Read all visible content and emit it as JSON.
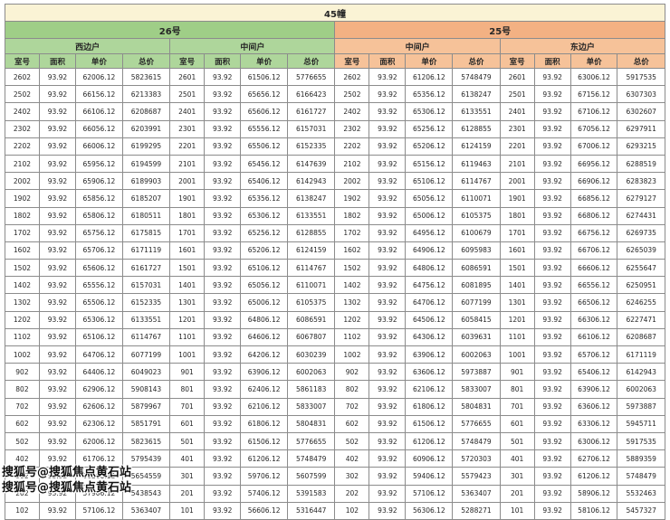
{
  "table": {
    "title": "45幢",
    "buildings": [
      {
        "name": "26号",
        "unit_types": [
          "西边户",
          "中间户"
        ]
      },
      {
        "name": "25号",
        "unit_types": [
          "中间户",
          "东边户"
        ]
      }
    ],
    "column_headers": [
      "室号",
      "面积",
      "单价",
      "总价"
    ],
    "rows": [
      [
        "2602",
        "93.92",
        "62006.12",
        "5823615",
        "2601",
        "93.92",
        "61506.12",
        "5776655",
        "2602",
        "93.92",
        "61206.12",
        "5748479",
        "2601",
        "93.92",
        "63006.12",
        "5917535"
      ],
      [
        "2502",
        "93.92",
        "66156.12",
        "6213383",
        "2501",
        "93.92",
        "65656.12",
        "6166423",
        "2502",
        "93.92",
        "65356.12",
        "6138247",
        "2501",
        "93.92",
        "67156.12",
        "6307303"
      ],
      [
        "2402",
        "93.92",
        "66106.12",
        "6208687",
        "2401",
        "93.92",
        "65606.12",
        "6161727",
        "2402",
        "93.92",
        "65306.12",
        "6133551",
        "2401",
        "93.92",
        "67106.12",
        "6302607"
      ],
      [
        "2302",
        "93.92",
        "66056.12",
        "6203991",
        "2301",
        "93.92",
        "65556.12",
        "6157031",
        "2302",
        "93.92",
        "65256.12",
        "6128855",
        "2301",
        "93.92",
        "67056.12",
        "6297911"
      ],
      [
        "2202",
        "93.92",
        "66006.12",
        "6199295",
        "2201",
        "93.92",
        "65506.12",
        "6152335",
        "2202",
        "93.92",
        "65206.12",
        "6124159",
        "2201",
        "93.92",
        "67006.12",
        "6293215"
      ],
      [
        "2102",
        "93.92",
        "65956.12",
        "6194599",
        "2101",
        "93.92",
        "65456.12",
        "6147639",
        "2102",
        "93.92",
        "65156.12",
        "6119463",
        "2101",
        "93.92",
        "66956.12",
        "6288519"
      ],
      [
        "2002",
        "93.92",
        "65906.12",
        "6189903",
        "2001",
        "93.92",
        "65406.12",
        "6142943",
        "2002",
        "93.92",
        "65106.12",
        "6114767",
        "2001",
        "93.92",
        "66906.12",
        "6283823"
      ],
      [
        "1902",
        "93.92",
        "65856.12",
        "6185207",
        "1901",
        "93.92",
        "65356.12",
        "6138247",
        "1902",
        "93.92",
        "65056.12",
        "6110071",
        "1901",
        "93.92",
        "66856.12",
        "6279127"
      ],
      [
        "1802",
        "93.92",
        "65806.12",
        "6180511",
        "1801",
        "93.92",
        "65306.12",
        "6133551",
        "1802",
        "93.92",
        "65006.12",
        "6105375",
        "1801",
        "93.92",
        "66806.12",
        "6274431"
      ],
      [
        "1702",
        "93.92",
        "65756.12",
        "6175815",
        "1701",
        "93.92",
        "65256.12",
        "6128855",
        "1702",
        "93.92",
        "64956.12",
        "6100679",
        "1701",
        "93.92",
        "66756.12",
        "6269735"
      ],
      [
        "1602",
        "93.92",
        "65706.12",
        "6171119",
        "1601",
        "93.92",
        "65206.12",
        "6124159",
        "1602",
        "93.92",
        "64906.12",
        "6095983",
        "1601",
        "93.92",
        "66706.12",
        "6265039"
      ],
      [
        "1502",
        "93.92",
        "65606.12",
        "6161727",
        "1501",
        "93.92",
        "65106.12",
        "6114767",
        "1502",
        "93.92",
        "64806.12",
        "6086591",
        "1501",
        "93.92",
        "66606.12",
        "6255647"
      ],
      [
        "1402",
        "93.92",
        "65556.12",
        "6157031",
        "1401",
        "93.92",
        "65056.12",
        "6110071",
        "1402",
        "93.92",
        "64756.12",
        "6081895",
        "1401",
        "93.92",
        "66556.12",
        "6250951"
      ],
      [
        "1302",
        "93.92",
        "65506.12",
        "6152335",
        "1301",
        "93.92",
        "65006.12",
        "6105375",
        "1302",
        "93.92",
        "64706.12",
        "6077199",
        "1301",
        "93.92",
        "66506.12",
        "6246255"
      ],
      [
        "1202",
        "93.92",
        "65306.12",
        "6133551",
        "1201",
        "93.92",
        "64806.12",
        "6086591",
        "1202",
        "93.92",
        "64506.12",
        "6058415",
        "1201",
        "93.92",
        "66306.12",
        "6227471"
      ],
      [
        "1102",
        "93.92",
        "65106.12",
        "6114767",
        "1101",
        "93.92",
        "64606.12",
        "6067807",
        "1102",
        "93.92",
        "64306.12",
        "6039631",
        "1101",
        "93.92",
        "66106.12",
        "6208687"
      ],
      [
        "1002",
        "93.92",
        "64706.12",
        "6077199",
        "1001",
        "93.92",
        "64206.12",
        "6030239",
        "1002",
        "93.92",
        "63906.12",
        "6002063",
        "1001",
        "93.92",
        "65706.12",
        "6171119"
      ],
      [
        "902",
        "93.92",
        "64406.12",
        "6049023",
        "901",
        "93.92",
        "63906.12",
        "6002063",
        "902",
        "93.92",
        "63606.12",
        "5973887",
        "901",
        "93.92",
        "65406.12",
        "6142943"
      ],
      [
        "802",
        "93.92",
        "62906.12",
        "5908143",
        "801",
        "93.92",
        "62406.12",
        "5861183",
        "802",
        "93.92",
        "62106.12",
        "5833007",
        "801",
        "93.92",
        "63906.12",
        "6002063"
      ],
      [
        "702",
        "93.92",
        "62606.12",
        "5879967",
        "701",
        "93.92",
        "62106.12",
        "5833007",
        "702",
        "93.92",
        "61806.12",
        "5804831",
        "701",
        "93.92",
        "63606.12",
        "5973887"
      ],
      [
        "602",
        "93.92",
        "62306.12",
        "5851791",
        "601",
        "93.92",
        "61806.12",
        "5804831",
        "602",
        "93.92",
        "61506.12",
        "5776655",
        "601",
        "93.92",
        "63306.12",
        "5945711"
      ],
      [
        "502",
        "93.92",
        "62006.12",
        "5823615",
        "501",
        "93.92",
        "61506.12",
        "5776655",
        "502",
        "93.92",
        "61206.12",
        "5748479",
        "501",
        "93.92",
        "63006.12",
        "5917535"
      ],
      [
        "402",
        "93.92",
        "61706.12",
        "5795439",
        "401",
        "93.92",
        "61206.12",
        "5748479",
        "402",
        "93.92",
        "60906.12",
        "5720303",
        "401",
        "93.92",
        "62706.12",
        "5889359"
      ],
      [
        "302",
        "93.92",
        "60206.12",
        "5654559",
        "301",
        "93.92",
        "59706.12",
        "5607599",
        "302",
        "93.92",
        "59406.12",
        "5579423",
        "301",
        "93.92",
        "61206.12",
        "5748479"
      ],
      [
        "202",
        "93.92",
        "57906.12",
        "5438543",
        "201",
        "93.92",
        "57406.12",
        "5391583",
        "202",
        "93.92",
        "57106.12",
        "5363407",
        "201",
        "93.92",
        "58906.12",
        "5532463"
      ],
      [
        "102",
        "93.92",
        "57106.12",
        "5363407",
        "101",
        "93.92",
        "56606.12",
        "5316447",
        "102",
        "93.92",
        "56306.12",
        "5288271",
        "101",
        "93.92",
        "58106.12",
        "5457327"
      ]
    ]
  },
  "watermark": {
    "line1": "搜狐号@搜狐焦点黄石站",
    "line2": "搜狐号@搜狐焦点黄石站"
  },
  "colors": {
    "title_bg": "#faf3d5",
    "green_header": "#9fce87",
    "green_sub": "#aed69b",
    "peach_header": "#f3b183",
    "peach_sub": "#f6c299",
    "border": "#8c8c8c"
  }
}
